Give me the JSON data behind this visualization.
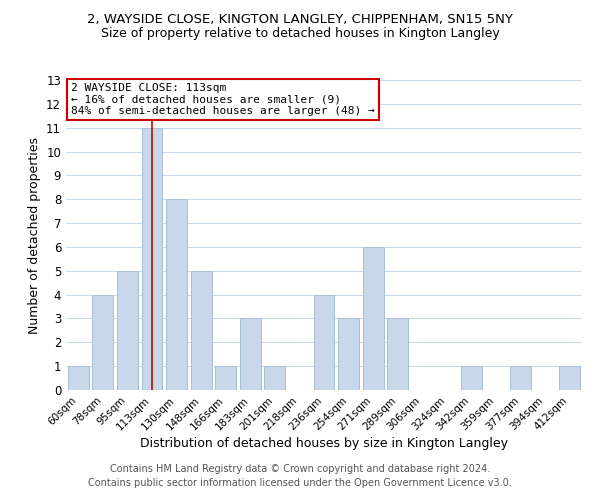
{
  "title1": "2, WAYSIDE CLOSE, KINGTON LANGLEY, CHIPPENHAM, SN15 5NY",
  "title2": "Size of property relative to detached houses in Kington Langley",
  "xlabel": "Distribution of detached houses by size in Kington Langley",
  "ylabel": "Number of detached properties",
  "bins": [
    "60sqm",
    "78sqm",
    "95sqm",
    "113sqm",
    "130sqm",
    "148sqm",
    "166sqm",
    "183sqm",
    "201sqm",
    "218sqm",
    "236sqm",
    "254sqm",
    "271sqm",
    "289sqm",
    "306sqm",
    "324sqm",
    "342sqm",
    "359sqm",
    "377sqm",
    "394sqm",
    "412sqm"
  ],
  "values": [
    1,
    4,
    5,
    11,
    8,
    5,
    1,
    3,
    1,
    0,
    4,
    3,
    6,
    3,
    0,
    0,
    1,
    0,
    1,
    0,
    1
  ],
  "bar_color": "#c8d8ea",
  "bar_edge_color": "#a8c0d8",
  "red_line_bin_index": 3,
  "ylim": [
    0,
    13
  ],
  "yticks": [
    0,
    1,
    2,
    3,
    4,
    5,
    6,
    7,
    8,
    9,
    10,
    11,
    12,
    13
  ],
  "annotation_title": "2 WAYSIDE CLOSE: 113sqm",
  "annotation_line1": "← 16% of detached houses are smaller (9)",
  "annotation_line2": "84% of semi-detached houses are larger (48) →",
  "annotation_box_color": "#ffffff",
  "annotation_box_edge_color": "#cc0000",
  "footer1": "Contains HM Land Registry data © Crown copyright and database right 2024.",
  "footer2": "Contains public sector information licensed under the Open Government Licence v3.0.",
  "background_color": "#ffffff",
  "grid_color": "#c8d8e8",
  "title1_fontsize": 9.5,
  "title2_fontsize": 9,
  "xlabel_fontsize": 9,
  "ylabel_fontsize": 9,
  "footer_fontsize": 7,
  "annotation_fontsize": 8
}
